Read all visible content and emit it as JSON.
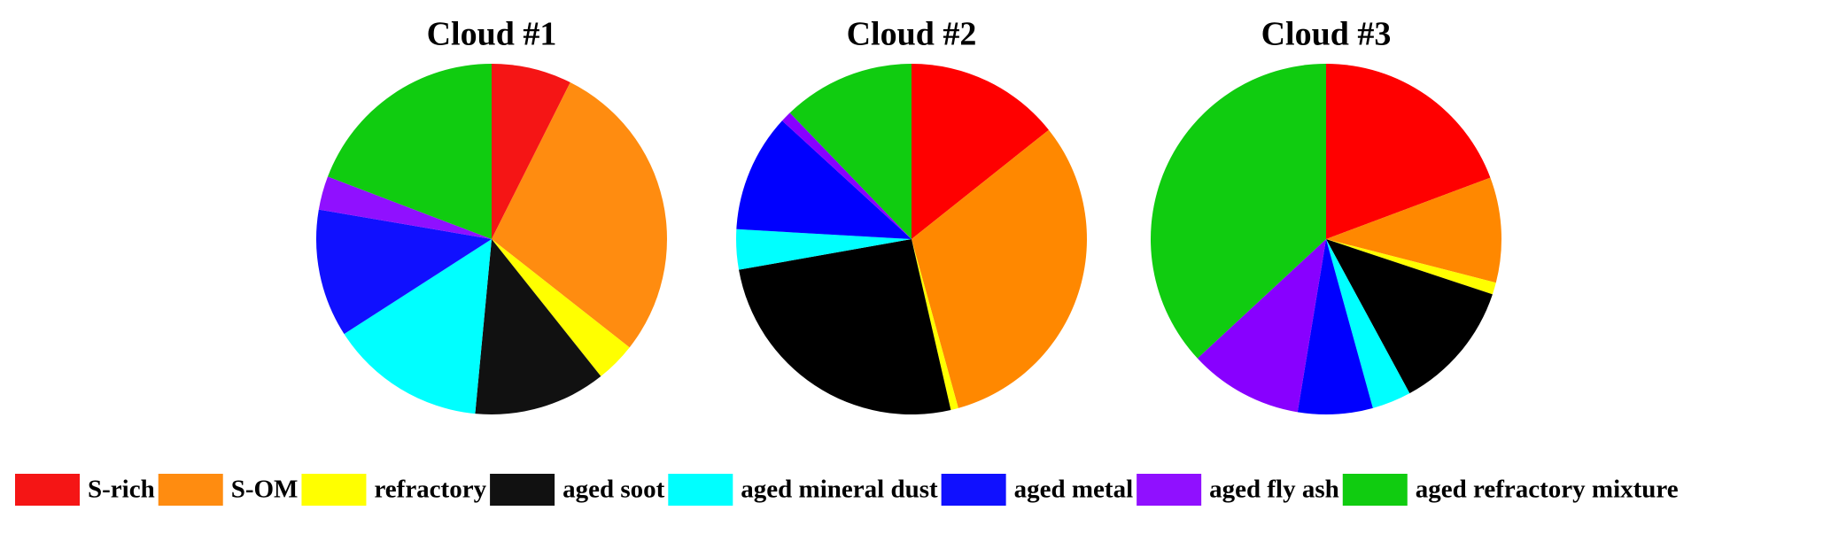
{
  "chart_data": [
    {
      "type": "pie",
      "title": "Cloud #1",
      "categories": [
        "S-rich",
        "S-OM",
        "refractory",
        "aged soot",
        "aged mineral dust",
        "aged metal",
        "aged fly ash",
        "aged refractory mixture"
      ],
      "values": [
        7.4,
        28.2,
        3.7,
        12.2,
        14.4,
        11.8,
        3.1,
        19.2
      ],
      "colors": [
        "#f51515",
        "#ff8c10",
        "#ffff00",
        "#111111",
        "#00ffff",
        "#1010ff",
        "#9010ff",
        "#10cc10"
      ]
    },
    {
      "type": "pie",
      "title": "Cloud #2",
      "categories": [
        "S-rich",
        "S-OM",
        "refractory",
        "aged soot",
        "aged mineral dust",
        "aged metal",
        "aged fly ash",
        "aged refractory mixture"
      ],
      "values": [
        14.3,
        31.4,
        0.7,
        25.8,
        3.7,
        10.9,
        1.0,
        12.2
      ],
      "colors": [
        "#ff0000",
        "#ff8800",
        "#ffff00",
        "#000000",
        "#00ffff",
        "#0000ff",
        "#8800ff",
        "#10cc10"
      ]
    },
    {
      "type": "pie",
      "title": "Cloud #3",
      "categories": [
        "S-rich",
        "S-OM",
        "refractory",
        "aged soot",
        "aged mineral dust",
        "aged metal",
        "aged fly ash",
        "aged refractory mixture"
      ],
      "values": [
        19.3,
        9.7,
        1.1,
        12.0,
        3.6,
        6.9,
        10.5,
        36.9
      ],
      "colors": [
        "#ff0000",
        "#ff8800",
        "#ffff00",
        "#000000",
        "#00ffff",
        "#0000ff",
        "#8800ff",
        "#10cc10"
      ]
    }
  ]
}
